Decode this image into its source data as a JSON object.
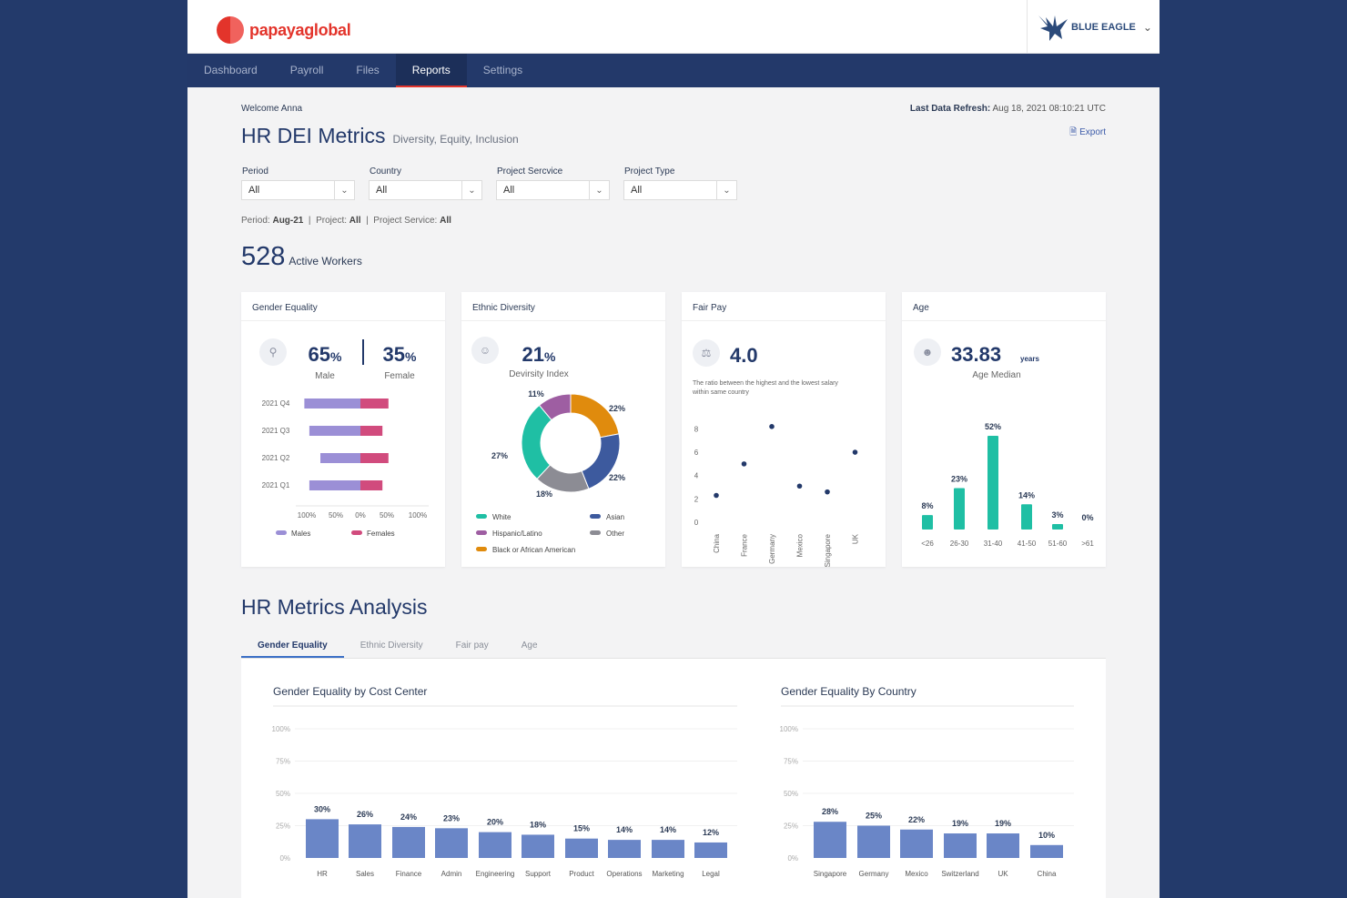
{
  "brand": {
    "name": "papayaglobal"
  },
  "company": {
    "name": "BLUE EAGLE",
    "icon": "eagle-logo-icon"
  },
  "nav": {
    "items": [
      "Dashboard",
      "Payroll",
      "Files",
      "Reports",
      "Settings"
    ],
    "active": "Reports"
  },
  "header": {
    "welcome": "Welcome Anna",
    "refresh_label": "Last Data Refresh:",
    "refresh_value": "Aug 18, 2021  08:10:21 UTC",
    "export_label": "Export",
    "title": "HR DEI Metrics",
    "subtitle": "Diversity, Equity, Inclusion"
  },
  "filters": [
    {
      "label": "Period",
      "value": "All"
    },
    {
      "label": "Country",
      "value": "All"
    },
    {
      "label": "Project Sercvice",
      "value": "All"
    },
    {
      "label": "Project Type",
      "value": "All"
    }
  ],
  "summary": {
    "period_label": "Period:",
    "period_value": "Aug-21",
    "project_label": "Project:",
    "project_value": "All",
    "service_label": "Project Service:",
    "service_value": "All"
  },
  "workers": {
    "count": "528",
    "label": "Active Workers"
  },
  "cards": {
    "gender": {
      "title": "Gender Equality",
      "male_pct": "65",
      "female_pct": "35",
      "pct_sign": "%",
      "male_label": "Male",
      "female_label": "Female",
      "legend_males": "Males",
      "legend_females": "Females",
      "icon": "gender-icon"
    },
    "ethnic": {
      "title": "Ethnic Diversity",
      "value": "21",
      "pct_sign": "%",
      "label": "Devirsity Index",
      "icon": "people-icon",
      "legend": [
        "White",
        "Asian",
        "Hispanic/Latino",
        "Other",
        "Black or African American"
      ]
    },
    "fairpay": {
      "title": "Fair Pay",
      "value": "4.0",
      "desc_line1": "The ratio between the highest and the lowest salary",
      "desc_line2": "within same country",
      "icon": "scale-icon"
    },
    "age": {
      "title": "Age",
      "value": "33.83",
      "unit": "years",
      "label": "Age Median",
      "icon": "age-group-icon"
    }
  },
  "analysis": {
    "title": "HR Metrics Analysis",
    "tabs": [
      "Gender Equality",
      "Ethnic Diversity",
      "Fair pay",
      "Age"
    ],
    "active_tab": "Gender Equality",
    "chart1_title": "Gender Equality by Cost Center",
    "chart2_title": "Gender Equality By Country"
  },
  "chart_data": [
    {
      "type": "bar",
      "orientation": "horizontal-stacked",
      "title": "Gender Equality",
      "categories": [
        "2021 Q4",
        "2021 Q3",
        "2021 Q2",
        "2021 Q1"
      ],
      "series": [
        {
          "name": "Males",
          "values": [
            -56,
            -51,
            -40,
            -51
          ],
          "color": "#9b8fd6"
        },
        {
          "name": "Females",
          "values": [
            28,
            22,
            28,
            22
          ],
          "color": "#d14b7d"
        }
      ],
      "xticks": [
        "100%",
        "50%",
        "0%",
        "50%",
        "100%"
      ],
      "xlim": [
        -100,
        100
      ]
    },
    {
      "type": "pie",
      "donut": true,
      "title": "Ethnic Diversity",
      "labels": [
        "Black or African American",
        "Asian",
        "Other",
        "White",
        "Hispanic/Latino"
      ],
      "values": [
        22,
        22,
        18,
        27,
        11
      ],
      "value_labels": [
        "22%",
        "22%",
        "18%",
        "27%",
        "11%"
      ],
      "colors": [
        "#e08b0d",
        "#3d5a9e",
        "#8c8c94",
        "#1fbfa4",
        "#9e5ea2"
      ]
    },
    {
      "type": "scatter",
      "title": "Fair Pay",
      "categories": [
        "China",
        "France",
        "Germany",
        "Mexico",
        "Singapore",
        "UK"
      ],
      "values": [
        2.3,
        5.0,
        8.2,
        3.1,
        2.6,
        6.0
      ],
      "yticks": [
        0,
        2,
        4,
        6,
        8
      ],
      "ylim": [
        0,
        9.2
      ]
    },
    {
      "type": "bar",
      "title": "Age",
      "categories": [
        "<26",
        "26-30",
        "31-40",
        "41-50",
        "51-60",
        ">61"
      ],
      "values": [
        8,
        23,
        52,
        14,
        3,
        0
      ],
      "value_labels": [
        "8%",
        "23%",
        "52%",
        "14%",
        "3%",
        "0%"
      ],
      "color": "#1fbfa4",
      "ylim": [
        0,
        52
      ]
    },
    {
      "type": "bar",
      "title": "Gender Equality by Cost Center",
      "categories": [
        "HR",
        "Sales",
        "Finance",
        "Admin",
        "Engineering",
        "Support",
        "Product",
        "Operations",
        "Marketing",
        "Legal"
      ],
      "values": [
        30,
        26,
        24,
        23,
        20,
        18,
        15,
        14,
        14,
        12
      ],
      "value_labels": [
        "30%",
        "26%",
        "24%",
        "23%",
        "20%",
        "18%",
        "15%",
        "14%",
        "14%",
        "12%"
      ],
      "yticks": [
        "0%",
        "25%",
        "50%",
        "75%",
        "100%"
      ],
      "ylim": [
        0,
        100
      ],
      "color": "#6a86c7"
    },
    {
      "type": "bar",
      "title": "Gender Equality By Country",
      "categories": [
        "Singapore",
        "Germany",
        "Mexico",
        "Switzerland",
        "UK",
        "China"
      ],
      "values": [
        28,
        25,
        22,
        19,
        19,
        10
      ],
      "value_labels": [
        "28%",
        "25%",
        "22%",
        "19%",
        "19%",
        "10%"
      ],
      "yticks": [
        "0%",
        "25%",
        "50%",
        "75%",
        "100%"
      ],
      "ylim": [
        0,
        100
      ],
      "color": "#6a86c7"
    }
  ]
}
